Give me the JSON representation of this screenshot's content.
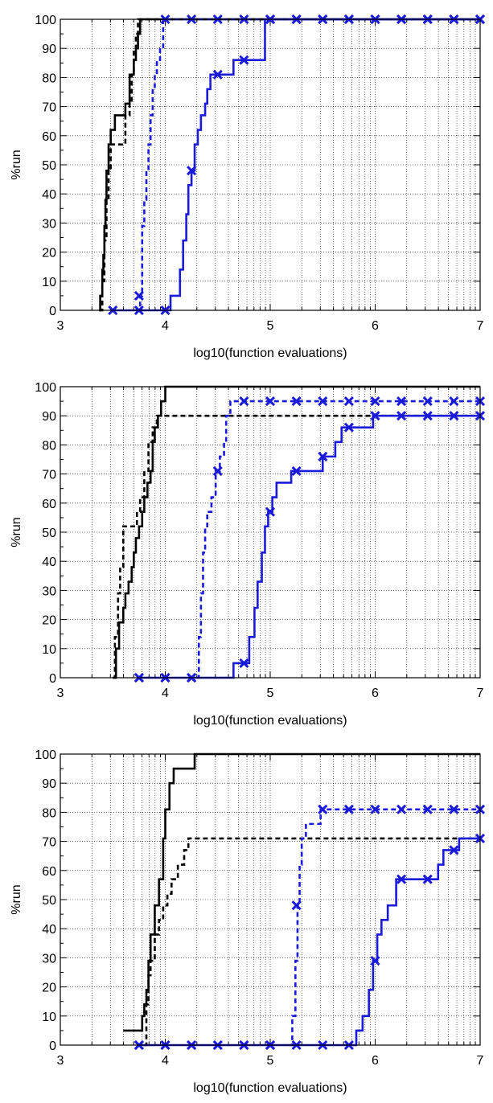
{
  "chart_data": [
    {
      "type": "line",
      "xlabel": "log10(function evaluations)",
      "ylabel": "%run",
      "xlim": [
        3,
        7
      ],
      "ylim": [
        0,
        100
      ],
      "xticks": [
        "3",
        "4",
        "5",
        "6",
        "7"
      ],
      "yticks": [
        "0",
        "10",
        "20",
        "30",
        "40",
        "50",
        "60",
        "70",
        "80",
        "90",
        "100"
      ],
      "grid": true,
      "log_x_grid": true,
      "series": [
        {
          "color": "#000000",
          "dash": "solid",
          "x": [
            3.37,
            3.38,
            3.4,
            3.41,
            3.42,
            3.43,
            3.44,
            3.46,
            3.48,
            3.52,
            3.62,
            3.66,
            3.7,
            3.72,
            3.74,
            3.76,
            7.0
          ],
          "y": [
            0,
            5,
            14,
            19,
            29,
            38,
            48,
            57,
            62,
            67,
            71,
            81,
            86,
            90,
            95,
            100,
            100
          ]
        },
        {
          "color": "#000000",
          "dash": "dashed",
          "x": [
            3.37,
            3.4,
            3.42,
            3.44,
            3.46,
            3.48,
            3.52,
            3.56,
            3.62,
            3.66,
            3.68,
            3.7,
            3.72,
            3.74,
            7.0
          ],
          "y": [
            0,
            10,
            24,
            38,
            48,
            57,
            57,
            57,
            67,
            71,
            81,
            90,
            95,
            100,
            100
          ]
        },
        {
          "color": "#1a1adb",
          "dash": "dashed",
          "x": [
            3.72,
            3.76,
            3.78,
            3.8,
            3.82,
            3.84,
            3.86,
            3.88,
            3.9,
            3.92,
            3.95,
            3.98,
            7.0
          ],
          "y": [
            0,
            5,
            29,
            38,
            48,
            57,
            67,
            76,
            81,
            86,
            90,
            100,
            100
          ],
          "markers": [
            [
              3.75,
              5
            ],
            [
              4.0,
              100
            ],
            [
              4.25,
              100
            ],
            [
              4.5,
              100
            ],
            [
              4.75,
              100
            ],
            [
              5.0,
              100
            ],
            [
              5.25,
              100
            ],
            [
              5.5,
              100
            ],
            [
              5.75,
              100
            ],
            [
              6.0,
              100
            ],
            [
              6.25,
              100
            ],
            [
              6.5,
              100
            ],
            [
              6.75,
              100
            ],
            [
              7.0,
              100
            ]
          ]
        },
        {
          "color": "#1a1adb",
          "dash": "solid",
          "x": [
            3.5,
            4.0,
            4.05,
            4.14,
            4.17,
            4.2,
            4.22,
            4.25,
            4.28,
            4.31,
            4.34,
            4.38,
            4.4,
            4.43,
            4.47,
            4.52,
            4.65,
            4.78,
            4.95,
            7.0
          ],
          "y": [
            0,
            0,
            5,
            14,
            24,
            33,
            43,
            48,
            57,
            62,
            67,
            71,
            76,
            81,
            81,
            81,
            86,
            86,
            100,
            100
          ],
          "markers": [
            [
              3.5,
              0
            ],
            [
              3.75,
              0
            ],
            [
              4.0,
              0
            ],
            [
              4.25,
              48
            ],
            [
              4.5,
              81
            ],
            [
              4.75,
              86
            ],
            [
              5.0,
              100
            ],
            [
              5.25,
              100
            ],
            [
              5.5,
              100
            ],
            [
              5.75,
              100
            ],
            [
              6.0,
              100
            ],
            [
              6.25,
              100
            ],
            [
              6.5,
              100
            ],
            [
              6.75,
              100
            ],
            [
              7.0,
              100
            ]
          ]
        }
      ]
    },
    {
      "type": "line",
      "xlabel": "log10(function evaluations)",
      "ylabel": "%run",
      "xlim": [
        3,
        7
      ],
      "ylim": [
        0,
        100
      ],
      "xticks": [
        "3",
        "4",
        "5",
        "6",
        "7"
      ],
      "yticks": [
        "0",
        "10",
        "20",
        "30",
        "40",
        "50",
        "60",
        "70",
        "80",
        "90",
        "100"
      ],
      "grid": true,
      "log_x_grid": true,
      "series": [
        {
          "color": "#000000",
          "dash": "solid",
          "x": [
            3.5,
            3.53,
            3.56,
            3.6,
            3.62,
            3.65,
            3.68,
            3.7,
            3.72,
            3.75,
            3.78,
            3.8,
            3.83,
            3.86,
            3.88,
            3.9,
            3.93,
            3.96,
            4.0,
            7.0
          ],
          "y": [
            0,
            10,
            19,
            24,
            29,
            33,
            38,
            43,
            48,
            52,
            57,
            62,
            67,
            71,
            81,
            86,
            90,
            95,
            100,
            100
          ]
        },
        {
          "color": "#000000",
          "dash": "dashed",
          "x": [
            3.5,
            3.52,
            3.55,
            3.57,
            3.6,
            3.7,
            3.73,
            3.76,
            3.8,
            3.84,
            3.88,
            3.92,
            3.95,
            7.0
          ],
          "y": [
            0,
            14,
            29,
            38,
            52,
            52,
            57,
            62,
            71,
            81,
            86,
            90,
            90,
            90
          ]
        },
        {
          "color": "#1a1adb",
          "dash": "dashed",
          "x": [
            4.3,
            4.32,
            4.34,
            4.36,
            4.38,
            4.4,
            4.44,
            4.48,
            4.52,
            4.56,
            4.58,
            4.62,
            7.0
          ],
          "y": [
            0,
            14,
            29,
            43,
            52,
            57,
            62,
            71,
            76,
            81,
            90,
            95,
            95
          ],
          "markers": [
            [
              3.75,
              0
            ],
            [
              4.0,
              0
            ],
            [
              4.25,
              0
            ],
            [
              4.5,
              71
            ],
            [
              4.75,
              95
            ],
            [
              5.0,
              95
            ],
            [
              5.25,
              95
            ],
            [
              5.5,
              95
            ],
            [
              5.75,
              95
            ],
            [
              6.0,
              95
            ],
            [
              6.25,
              95
            ],
            [
              6.5,
              95
            ],
            [
              6.75,
              95
            ],
            [
              7.0,
              95
            ]
          ]
        },
        {
          "color": "#1a1adb",
          "dash": "solid",
          "x": [
            3.75,
            4.65,
            4.75,
            4.8,
            4.85,
            4.88,
            4.92,
            4.95,
            4.98,
            5.02,
            5.06,
            5.2,
            5.3,
            5.5,
            5.62,
            5.68,
            5.78,
            5.98,
            7.0
          ],
          "y": [
            0,
            5,
            5,
            14,
            24,
            33,
            43,
            52,
            57,
            62,
            67,
            71,
            71,
            76,
            81,
            86,
            86,
            90,
            90
          ],
          "markers": [
            [
              3.75,
              0
            ],
            [
              4.0,
              0
            ],
            [
              4.25,
              0
            ],
            [
              4.75,
              5
            ],
            [
              5.0,
              57
            ],
            [
              5.25,
              71
            ],
            [
              5.5,
              76
            ],
            [
              5.75,
              86
            ],
            [
              6.0,
              90
            ],
            [
              6.25,
              90
            ],
            [
              6.5,
              90
            ],
            [
              6.75,
              90
            ],
            [
              7.0,
              90
            ]
          ]
        }
      ]
    },
    {
      "type": "line",
      "xlabel": "log10(function evaluations)",
      "ylabel": "%run",
      "xlim": [
        3,
        7
      ],
      "ylim": [
        0,
        100
      ],
      "xticks": [
        "3",
        "4",
        "5",
        "6",
        "7"
      ],
      "yticks": [
        "0",
        "10",
        "20",
        "30",
        "40",
        "50",
        "60",
        "70",
        "80",
        "90",
        "100"
      ],
      "grid": true,
      "log_x_grid": true,
      "series": [
        {
          "color": "#000000",
          "dash": "solid",
          "x": [
            3.6,
            3.72,
            3.78,
            3.8,
            3.82,
            3.84,
            3.86,
            3.9,
            3.94,
            3.98,
            4.0,
            4.04,
            4.08,
            4.28,
            7.0
          ],
          "y": [
            5,
            5,
            10,
            14,
            19,
            29,
            38,
            48,
            57,
            71,
            81,
            90,
            95,
            100,
            100
          ]
        },
        {
          "color": "#000000",
          "dash": "dashed",
          "x": [
            3.8,
            3.82,
            3.84,
            3.86,
            3.9,
            3.94,
            3.98,
            4.02,
            4.06,
            4.12,
            4.18,
            4.22,
            7.0
          ],
          "y": [
            0,
            14,
            24,
            29,
            38,
            43,
            48,
            52,
            57,
            62,
            67,
            71,
            71
          ]
        },
        {
          "color": "#1a1adb",
          "dash": "dashed",
          "x": [
            5.18,
            5.21,
            5.24,
            5.26,
            5.28,
            5.3,
            5.34,
            5.48,
            7.0
          ],
          "y": [
            0,
            10,
            29,
            48,
            62,
            71,
            76,
            81,
            81
          ],
          "markers": [
            [
              3.75,
              0
            ],
            [
              4.0,
              0
            ],
            [
              4.25,
              0
            ],
            [
              4.5,
              0
            ],
            [
              4.75,
              0
            ],
            [
              5.0,
              0
            ],
            [
              5.25,
              48
            ],
            [
              5.5,
              81
            ],
            [
              5.75,
              81
            ],
            [
              6.0,
              81
            ],
            [
              6.25,
              81
            ],
            [
              6.5,
              81
            ],
            [
              6.75,
              81
            ],
            [
              7.0,
              81
            ]
          ]
        },
        {
          "color": "#1a1adb",
          "dash": "solid",
          "x": [
            3.75,
            5.78,
            5.82,
            5.88,
            5.94,
            5.98,
            6.02,
            6.06,
            6.12,
            6.2,
            6.55,
            6.6,
            6.65,
            6.7,
            6.8,
            7.0
          ],
          "y": [
            0,
            0,
            5,
            10,
            19,
            29,
            38,
            43,
            48,
            57,
            57,
            62,
            67,
            67,
            71,
            71
          ],
          "markers": [
            [
              3.75,
              0
            ],
            [
              4.0,
              0
            ],
            [
              4.25,
              0
            ],
            [
              4.5,
              0
            ],
            [
              4.75,
              0
            ],
            [
              5.0,
              0
            ],
            [
              5.25,
              0
            ],
            [
              5.5,
              0
            ],
            [
              5.75,
              0
            ],
            [
              6.0,
              29
            ],
            [
              6.25,
              57
            ],
            [
              6.5,
              57
            ],
            [
              6.75,
              67
            ],
            [
              7.0,
              71
            ]
          ]
        }
      ]
    }
  ]
}
